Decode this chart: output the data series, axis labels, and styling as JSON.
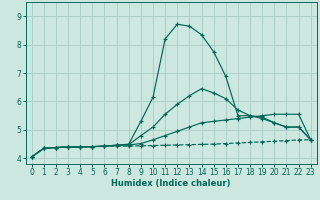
{
  "background_color": "#cce8e0",
  "grid_color": "#aaccc4",
  "line_color": "#006858",
  "xlabel": "Humidex (Indice chaleur)",
  "xlim": [
    -0.5,
    23.5
  ],
  "ylim": [
    3.8,
    9.5
  ],
  "xticks": [
    0,
    1,
    2,
    3,
    4,
    5,
    6,
    7,
    8,
    9,
    10,
    11,
    12,
    13,
    14,
    15,
    16,
    17,
    18,
    19,
    20,
    21,
    22,
    23
  ],
  "yticks": [
    4,
    5,
    6,
    7,
    8,
    9
  ],
  "series": [
    {
      "linestyle": "--",
      "x": [
        0,
        1,
        2,
        3,
        4,
        5,
        6,
        7,
        8,
        9,
        10,
        11,
        12,
        13,
        14,
        15,
        16,
        17,
        18,
        19,
        20,
        21,
        22,
        23
      ],
      "y": [
        4.05,
        4.35,
        4.38,
        4.4,
        4.4,
        4.41,
        4.42,
        4.43,
        4.43,
        4.44,
        4.45,
        4.46,
        4.47,
        4.48,
        4.49,
        4.5,
        4.52,
        4.54,
        4.56,
        4.58,
        4.6,
        4.62,
        4.65,
        4.65
      ]
    },
    {
      "linestyle": "-",
      "x": [
        0,
        1,
        2,
        3,
        4,
        5,
        6,
        7,
        8,
        9,
        10,
        11,
        12,
        13,
        14,
        15,
        16,
        17,
        18,
        19,
        20,
        21,
        22,
        23
      ],
      "y": [
        4.05,
        4.35,
        4.38,
        4.4,
        4.4,
        4.41,
        4.43,
        4.46,
        4.47,
        4.52,
        4.65,
        4.8,
        4.95,
        5.1,
        5.25,
        5.3,
        5.35,
        5.4,
        5.45,
        5.5,
        5.55,
        5.55,
        5.55,
        4.65
      ]
    },
    {
      "linestyle": "-",
      "x": [
        0,
        1,
        2,
        3,
        4,
        5,
        6,
        7,
        8,
        9,
        10,
        11,
        12,
        13,
        14,
        15,
        16,
        17,
        18,
        19,
        20,
        21,
        22,
        23
      ],
      "y": [
        4.05,
        4.35,
        4.38,
        4.4,
        4.4,
        4.41,
        4.43,
        4.46,
        4.5,
        5.3,
        6.15,
        8.2,
        8.72,
        8.65,
        8.35,
        7.75,
        6.88,
        5.5,
        5.5,
        5.45,
        5.25,
        5.1,
        5.1,
        4.65
      ]
    },
    {
      "linestyle": "-",
      "x": [
        0,
        1,
        2,
        3,
        4,
        5,
        6,
        7,
        8,
        9,
        10,
        11,
        12,
        13,
        14,
        15,
        16,
        17,
        18,
        19,
        20,
        21,
        22,
        23
      ],
      "y": [
        4.05,
        4.35,
        4.38,
        4.4,
        4.4,
        4.41,
        4.43,
        4.46,
        4.48,
        4.8,
        5.1,
        5.55,
        5.9,
        6.2,
        6.45,
        6.3,
        6.1,
        5.7,
        5.5,
        5.4,
        5.25,
        5.1,
        5.1,
        4.65
      ]
    }
  ]
}
